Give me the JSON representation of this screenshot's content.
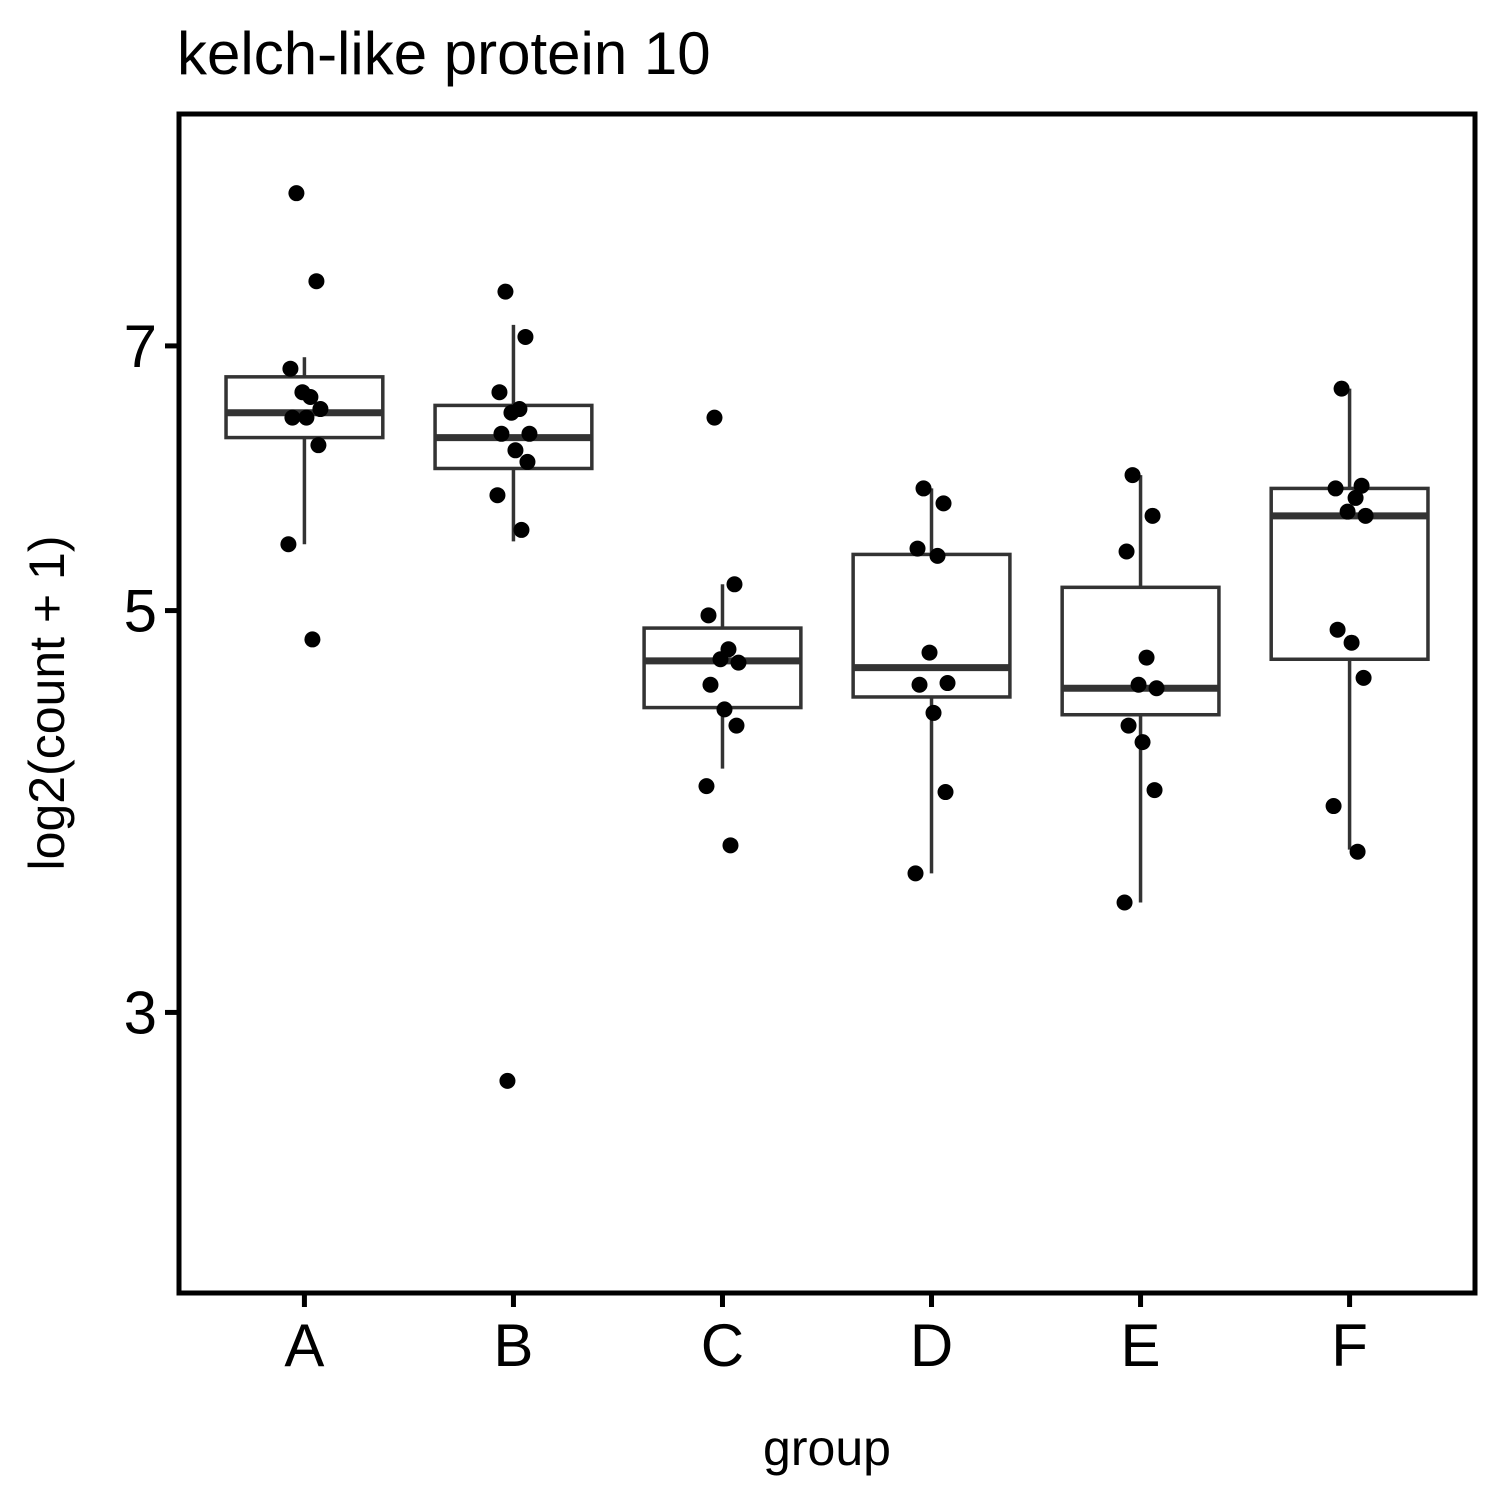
{
  "chart_data": {
    "type": "box",
    "title": "kelch-like protein 10",
    "xlabel": "group",
    "ylabel": "log2(count + 1)",
    "ylim": [
      2.1,
      9.4
    ],
    "yscale": "log",
    "yticks": [
      3,
      5,
      7
    ],
    "grid": false,
    "legend": "none",
    "categories": [
      "A",
      "B",
      "C",
      "D",
      "E",
      "F"
    ],
    "boxes": [
      {
        "category": "A",
        "lower_whisker": 5.44,
        "q1": 6.23,
        "median": 6.43,
        "q3": 6.73,
        "upper_whisker": 6.9
      },
      {
        "category": "B",
        "lower_whisker": 5.46,
        "q1": 5.99,
        "median": 6.23,
        "q3": 6.49,
        "upper_whisker": 7.19
      },
      {
        "category": "C",
        "lower_whisker": 4.09,
        "q1": 4.42,
        "median": 4.69,
        "q3": 4.89,
        "upper_whisker": 5.17
      },
      {
        "category": "D",
        "lower_whisker": 3.58,
        "q1": 4.48,
        "median": 4.65,
        "q3": 5.37,
        "upper_whisker": 5.84
      },
      {
        "category": "E",
        "lower_whisker": 3.45,
        "q1": 4.38,
        "median": 4.53,
        "q3": 5.15,
        "upper_whisker": 5.94
      },
      {
        "category": "F",
        "lower_whisker": 3.69,
        "q1": 4.7,
        "median": 5.64,
        "q3": 5.84,
        "upper_whisker": 6.63
      }
    ],
    "points": [
      {
        "category": "A",
        "values": [
          8.5,
          7.6,
          6.8,
          6.56,
          6.6,
          6.46,
          6.39,
          6.39,
          6.17,
          5.44,
          4.82
        ]
      },
      {
        "category": "B",
        "values": [
          7.5,
          7.08,
          6.6,
          6.46,
          6.43,
          6.26,
          6.26,
          6.13,
          6.04,
          5.79,
          5.54,
          2.75
        ]
      },
      {
        "category": "C",
        "values": [
          6.39,
          5.17,
          4.97,
          4.76,
          4.7,
          4.68,
          4.55,
          4.41,
          4.32,
          4.0,
          3.71
        ]
      },
      {
        "category": "D",
        "values": [
          5.84,
          5.73,
          5.41,
          5.36,
          4.74,
          4.56,
          4.55,
          4.39,
          3.97,
          3.58
        ]
      },
      {
        "category": "E",
        "values": [
          5.94,
          5.64,
          5.39,
          4.71,
          4.55,
          4.53,
          4.32,
          4.23,
          3.98,
          3.45
        ]
      },
      {
        "category": "F",
        "values": [
          6.63,
          5.86,
          5.84,
          5.77,
          5.67,
          5.64,
          4.88,
          4.8,
          4.59,
          3.9,
          3.68
        ]
      }
    ],
    "colors": {
      "box_stroke": "#333333",
      "point": "#000000",
      "panel_border": "#000000"
    }
  }
}
